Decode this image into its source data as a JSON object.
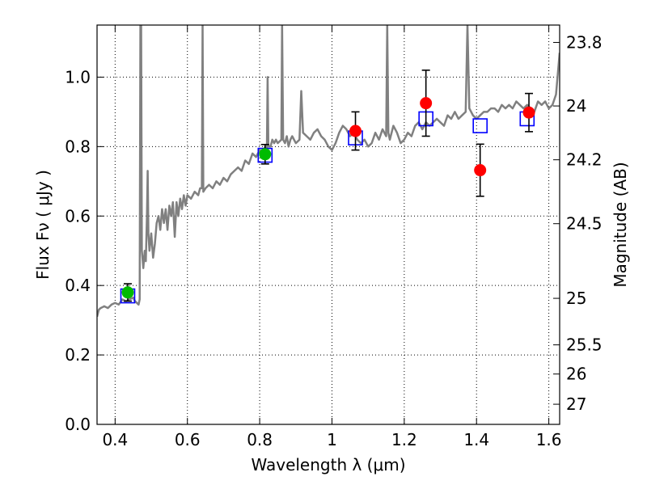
{
  "chart_data": {
    "type": "scatter",
    "xlabel": "Wavelength  λ (μm)",
    "ylabel": "Flux  Fν  ( μJy )",
    "y2label": "Magnitude (AB)",
    "xlim": [
      0.35,
      1.63
    ],
    "ylim": [
      0.0,
      1.15
    ],
    "grid": true,
    "x_ticks": [
      {
        "v": 0.4,
        "label": "0.4"
      },
      {
        "v": 0.6,
        "label": "0.6"
      },
      {
        "v": 0.8,
        "label": "0.8"
      },
      {
        "v": 1.0,
        "label": "1"
      },
      {
        "v": 1.2,
        "label": "1.2"
      },
      {
        "v": 1.4,
        "label": "1.4"
      },
      {
        "v": 1.6,
        "label": "1.6"
      }
    ],
    "y_ticks": [
      {
        "v": 0.0,
        "label": "0.0"
      },
      {
        "v": 0.2,
        "label": "0.2"
      },
      {
        "v": 0.4,
        "label": "0.4"
      },
      {
        "v": 0.6,
        "label": "0.6"
      },
      {
        "v": 0.8,
        "label": "0.8"
      },
      {
        "v": 1.0,
        "label": "1.0"
      }
    ],
    "y2_ticks": [
      {
        "flux": 1.1,
        "label": "23.8"
      },
      {
        "flux": 0.917,
        "label": "24"
      },
      {
        "flux": 0.762,
        "label": "24.2"
      },
      {
        "flux": 0.578,
        "label": "24.5"
      },
      {
        "flux": 0.363,
        "label": "25"
      },
      {
        "flux": 0.229,
        "label": "25.5"
      },
      {
        "flux": 0.145,
        "label": "26"
      },
      {
        "flux": 0.058,
        "label": "27"
      }
    ],
    "colors": {
      "spectrum": "#808080",
      "observed_red": "#ff0000",
      "observed_green": "#00bb00",
      "model_box": "#0000ff",
      "errorbar": "#000000",
      "grid": "#000000"
    },
    "series": [
      {
        "kind": "line",
        "color": "#808080",
        "points": [
          [
            0.35,
            0.31
          ],
          [
            0.355,
            0.33
          ],
          [
            0.36,
            0.335
          ],
          [
            0.37,
            0.34
          ],
          [
            0.38,
            0.335
          ],
          [
            0.39,
            0.345
          ],
          [
            0.4,
            0.35
          ],
          [
            0.41,
            0.345
          ],
          [
            0.42,
            0.36
          ],
          [
            0.43,
            0.355
          ],
          [
            0.44,
            0.36
          ],
          [
            0.45,
            0.365
          ],
          [
            0.455,
            0.355
          ],
          [
            0.46,
            0.35
          ],
          [
            0.465,
            0.345
          ],
          [
            0.468,
            0.36
          ],
          [
            0.47,
            1.15
          ],
          [
            0.472,
            1.15
          ],
          [
            0.474,
            0.5
          ],
          [
            0.478,
            0.45
          ],
          [
            0.482,
            0.5
          ],
          [
            0.485,
            0.47
          ],
          [
            0.488,
            0.6
          ],
          [
            0.49,
            0.73
          ],
          [
            0.492,
            0.55
          ],
          [
            0.495,
            0.5
          ],
          [
            0.5,
            0.55
          ],
          [
            0.505,
            0.48
          ],
          [
            0.51,
            0.52
          ],
          [
            0.515,
            0.58
          ],
          [
            0.52,
            0.6
          ],
          [
            0.525,
            0.56
          ],
          [
            0.53,
            0.62
          ],
          [
            0.535,
            0.58
          ],
          [
            0.54,
            0.62
          ],
          [
            0.545,
            0.56
          ],
          [
            0.55,
            0.63
          ],
          [
            0.555,
            0.6
          ],
          [
            0.56,
            0.64
          ],
          [
            0.565,
            0.54
          ],
          [
            0.57,
            0.64
          ],
          [
            0.575,
            0.6
          ],
          [
            0.58,
            0.65
          ],
          [
            0.585,
            0.62
          ],
          [
            0.59,
            0.66
          ],
          [
            0.595,
            0.63
          ],
          [
            0.6,
            0.66
          ],
          [
            0.61,
            0.65
          ],
          [
            0.62,
            0.67
          ],
          [
            0.63,
            0.66
          ],
          [
            0.635,
            0.68
          ],
          [
            0.64,
            0.68
          ],
          [
            0.642,
            1.15
          ],
          [
            0.644,
            0.67
          ],
          [
            0.65,
            0.68
          ],
          [
            0.66,
            0.69
          ],
          [
            0.67,
            0.68
          ],
          [
            0.68,
            0.7
          ],
          [
            0.69,
            0.69
          ],
          [
            0.7,
            0.71
          ],
          [
            0.71,
            0.7
          ],
          [
            0.72,
            0.72
          ],
          [
            0.73,
            0.73
          ],
          [
            0.74,
            0.74
          ],
          [
            0.75,
            0.73
          ],
          [
            0.76,
            0.76
          ],
          [
            0.77,
            0.75
          ],
          [
            0.78,
            0.78
          ],
          [
            0.79,
            0.77
          ],
          [
            0.8,
            0.79
          ],
          [
            0.81,
            0.78
          ],
          [
            0.815,
            0.8
          ],
          [
            0.82,
            0.79
          ],
          [
            0.822,
            1.0
          ],
          [
            0.824,
            0.8
          ],
          [
            0.83,
            0.8
          ],
          [
            0.835,
            0.82
          ],
          [
            0.84,
            0.81
          ],
          [
            0.845,
            0.82
          ],
          [
            0.85,
            0.81
          ],
          [
            0.86,
            0.82
          ],
          [
            0.862,
            1.15
          ],
          [
            0.865,
            0.82
          ],
          [
            0.87,
            0.81
          ],
          [
            0.875,
            0.83
          ],
          [
            0.88,
            0.8
          ],
          [
            0.885,
            0.82
          ],
          [
            0.89,
            0.83
          ],
          [
            0.9,
            0.81
          ],
          [
            0.91,
            0.82
          ],
          [
            0.915,
            0.96
          ],
          [
            0.92,
            0.84
          ],
          [
            0.93,
            0.83
          ],
          [
            0.94,
            0.82
          ],
          [
            0.95,
            0.84
          ],
          [
            0.96,
            0.85
          ],
          [
            0.97,
            0.83
          ],
          [
            0.98,
            0.82
          ],
          [
            0.99,
            0.8
          ],
          [
            1.0,
            0.79
          ],
          [
            1.01,
            0.81
          ],
          [
            1.02,
            0.84
          ],
          [
            1.03,
            0.86
          ],
          [
            1.04,
            0.85
          ],
          [
            1.05,
            0.83
          ],
          [
            1.06,
            0.84
          ],
          [
            1.07,
            0.82
          ],
          [
            1.08,
            0.81
          ],
          [
            1.09,
            0.82
          ],
          [
            1.1,
            0.8
          ],
          [
            1.11,
            0.81
          ],
          [
            1.12,
            0.84
          ],
          [
            1.13,
            0.82
          ],
          [
            1.14,
            0.85
          ],
          [
            1.15,
            0.83
          ],
          [
            1.153,
            1.15
          ],
          [
            1.156,
            0.84
          ],
          [
            1.16,
            0.82
          ],
          [
            1.17,
            0.86
          ],
          [
            1.18,
            0.84
          ],
          [
            1.19,
            0.81
          ],
          [
            1.2,
            0.82
          ],
          [
            1.21,
            0.84
          ],
          [
            1.22,
            0.83
          ],
          [
            1.23,
            0.86
          ],
          [
            1.24,
            0.87
          ],
          [
            1.25,
            0.85
          ],
          [
            1.26,
            0.87
          ],
          [
            1.27,
            0.86
          ],
          [
            1.28,
            0.87
          ],
          [
            1.29,
            0.88
          ],
          [
            1.3,
            0.87
          ],
          [
            1.31,
            0.86
          ],
          [
            1.32,
            0.89
          ],
          [
            1.33,
            0.88
          ],
          [
            1.34,
            0.9
          ],
          [
            1.35,
            0.88
          ],
          [
            1.36,
            0.89
          ],
          [
            1.37,
            0.9
          ],
          [
            1.375,
            1.15
          ],
          [
            1.38,
            0.91
          ],
          [
            1.39,
            0.89
          ],
          [
            1.4,
            0.88
          ],
          [
            1.41,
            0.89
          ],
          [
            1.42,
            0.9
          ],
          [
            1.43,
            0.9
          ],
          [
            1.44,
            0.91
          ],
          [
            1.45,
            0.91
          ],
          [
            1.46,
            0.9
          ],
          [
            1.47,
            0.92
          ],
          [
            1.48,
            0.91
          ],
          [
            1.49,
            0.92
          ],
          [
            1.5,
            0.91
          ],
          [
            1.51,
            0.93
          ],
          [
            1.52,
            0.92
          ],
          [
            1.53,
            0.91
          ],
          [
            1.54,
            0.92
          ],
          [
            1.55,
            0.91
          ],
          [
            1.56,
            0.9
          ],
          [
            1.57,
            0.93
          ],
          [
            1.58,
            0.92
          ],
          [
            1.59,
            0.93
          ],
          [
            1.6,
            0.91
          ],
          [
            1.61,
            0.92
          ],
          [
            1.62,
            0.95
          ],
          [
            1.63,
            1.07
          ]
        ]
      },
      {
        "kind": "model_boxes",
        "color": "#0000ff",
        "points": [
          [
            0.435,
            0.37
          ],
          [
            0.815,
            0.775
          ],
          [
            1.065,
            0.825
          ],
          [
            1.26,
            0.88
          ],
          [
            1.41,
            0.86
          ],
          [
            1.54,
            0.88
          ]
        ]
      },
      {
        "kind": "observed",
        "color": "#ff0000",
        "points": [
          {
            "x": 1.065,
            "y": 0.845,
            "err": 0.055
          },
          {
            "x": 1.26,
            "y": 0.925,
            "err": 0.095
          },
          {
            "x": 1.41,
            "y": 0.732,
            "err": 0.075
          },
          {
            "x": 1.545,
            "y": 0.898,
            "err": 0.055
          }
        ]
      },
      {
        "kind": "observed",
        "color": "#00bb00",
        "points": [
          {
            "x": 0.435,
            "y": 0.38,
            "err": 0.025
          },
          {
            "x": 0.815,
            "y": 0.778,
            "err": 0.028
          }
        ]
      }
    ]
  }
}
